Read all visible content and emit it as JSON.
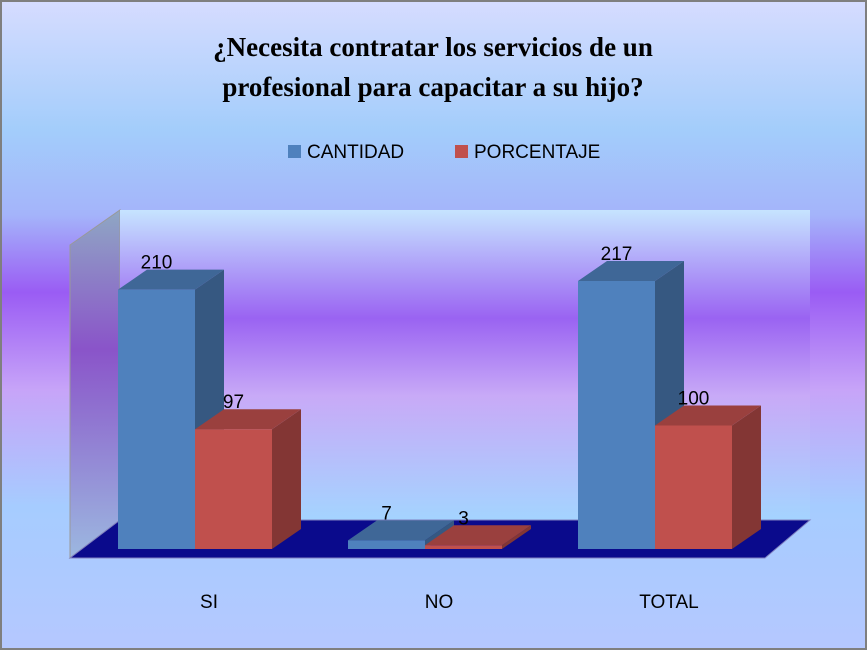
{
  "chart_data": {
    "type": "bar3d",
    "title": [
      "¿Necesita contratar los servicios de un",
      "profesional para capacitar a su hijo?"
    ],
    "categories": [
      "SI",
      "NO",
      "TOTAL"
    ],
    "series": [
      {
        "name": "CANTIDAD",
        "color": "#4f81bd",
        "values": [
          210,
          7,
          217
        ]
      },
      {
        "name": "PORCENTAJE",
        "color": "#c0504d",
        "values": [
          97,
          3,
          100
        ]
      }
    ],
    "legend": "top"
  }
}
